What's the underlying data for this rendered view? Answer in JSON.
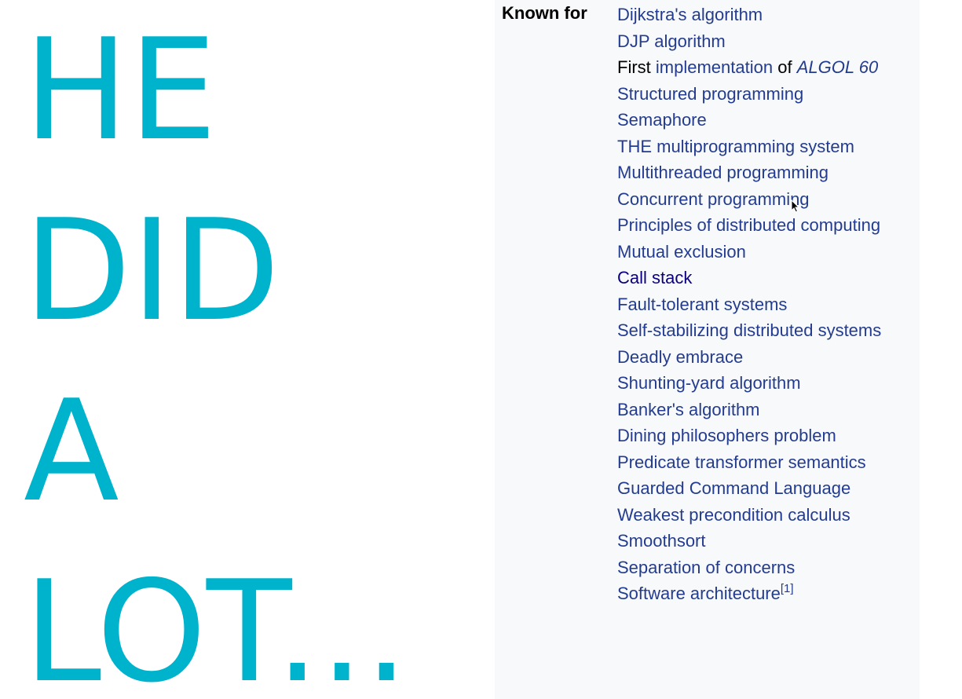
{
  "slide": {
    "lines": [
      "HE",
      "DID",
      "A",
      "LOT..."
    ]
  },
  "infobox": {
    "label": "Known for",
    "items": {
      "i0": "Dijkstra's algorithm",
      "i1": "DJP algorithm",
      "i2_first": "First",
      "i2_impl": "implementation",
      "i2_of": "of",
      "i2_algol": "ALGOL 60",
      "i3": "Structured programming",
      "i4": "Semaphore",
      "i5": "THE multiprogramming system",
      "i6": "Multithreaded programming",
      "i7": "Concurrent programming",
      "i8": "Principles of distributed computing",
      "i9": "Mutual exclusion",
      "i10": "Call stack",
      "i11": "Fault-tolerant systems",
      "i12": "Self-stabilizing distributed systems",
      "i13": "Deadly embrace",
      "i14": "Shunting-yard algorithm",
      "i15": "Banker's algorithm",
      "i16": "Dining philosophers problem",
      "i17": "Predicate transformer semantics",
      "i18": "Guarded Command Language",
      "i19": "Weakest precondition calculus",
      "i20": "Smoothsort",
      "i21": "Separation of concerns",
      "i22": "Software architecture",
      "i22_ref": "[1]"
    }
  },
  "colors": {
    "slide_text": "#00b3cd",
    "infobox_bg": "#f8f9fa",
    "link": "#233c8f",
    "visited_link": "#0b0080"
  },
  "icons": {
    "cursor": "mouse-pointer-icon"
  }
}
